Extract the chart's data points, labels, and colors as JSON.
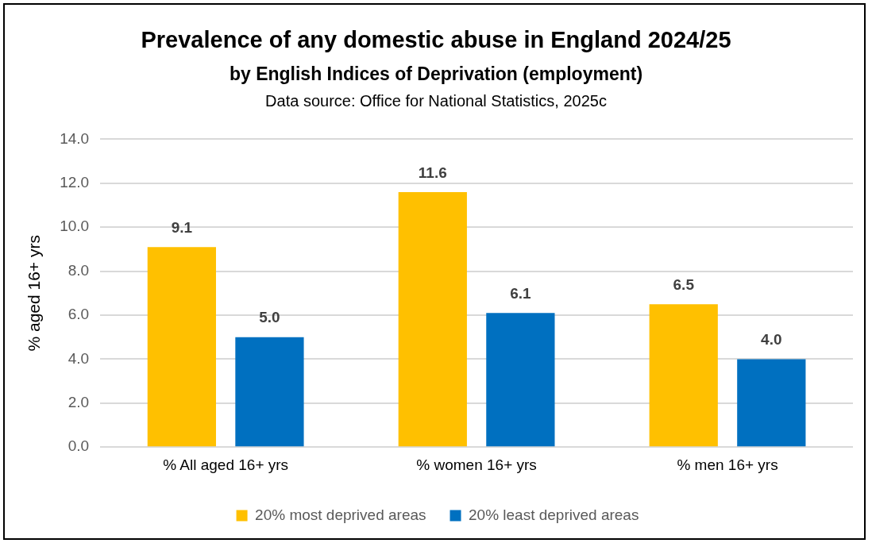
{
  "chart_data": {
    "type": "bar",
    "title": "Prevalence of any domestic abuse in England 2024/25",
    "subtitle": "by English Indices of Deprivation (employment)",
    "annotations": [
      "Data source: Office for National Statistics, 2025c"
    ],
    "ylabel": "% aged 16+ yrs",
    "categories": [
      "% All aged 16+ yrs",
      "% women 16+ yrs",
      "% men 16+ yrs"
    ],
    "series": [
      {
        "name": "20% most deprived areas",
        "color": "#ffc000",
        "values": [
          9.1,
          11.6,
          6.5
        ],
        "value_labels": [
          "9.1",
          "11.6",
          "6.5"
        ]
      },
      {
        "name": "20% least deprived areas",
        "color": "#0070c0",
        "values": [
          5.0,
          6.1,
          4.0
        ],
        "value_labels": [
          "5.0",
          "6.1",
          "4.0"
        ]
      }
    ],
    "ylim": [
      0,
      14
    ],
    "yticks": [
      {
        "value": 0,
        "label": "0.0"
      },
      {
        "value": 2,
        "label": "2.0"
      },
      {
        "value": 4,
        "label": "4.0"
      },
      {
        "value": 6,
        "label": "6.0"
      },
      {
        "value": 8,
        "label": "8.0"
      },
      {
        "value": 10,
        "label": "10.0"
      },
      {
        "value": 12,
        "label": "12.0"
      },
      {
        "value": 14,
        "label": "14.0"
      }
    ],
    "grid": "y",
    "legend": "bottom"
  }
}
